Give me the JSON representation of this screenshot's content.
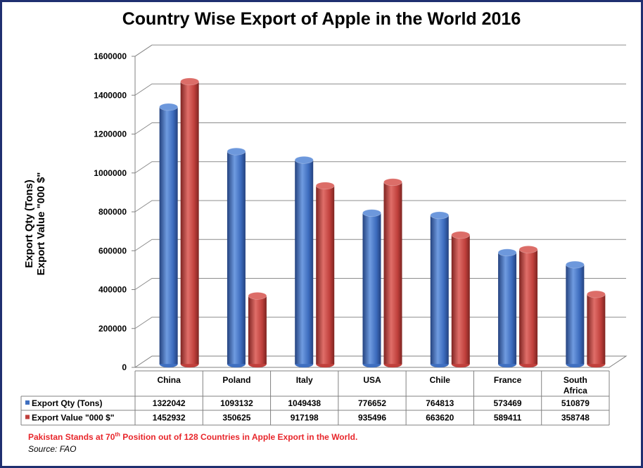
{
  "chart_data": {
    "type": "bar",
    "title": "Country Wise Export of Apple in the World 2016",
    "ylabel_lines": [
      "Export Qty (Tons)",
      "Export Value \"000 $\""
    ],
    "ylim": [
      0,
      1600000
    ],
    "yticks": [
      "0",
      "200000",
      "400000",
      "600000",
      "800000",
      "1000000",
      "1200000",
      "1400000",
      "1600000"
    ],
    "yticks_values": [
      0,
      200000,
      400000,
      600000,
      800000,
      1000000,
      1200000,
      1400000,
      1600000
    ],
    "grid": true,
    "legend_placement": "data-table",
    "categories": [
      [
        "China"
      ],
      [
        "Poland"
      ],
      [
        "Italy"
      ],
      [
        "USA"
      ],
      [
        "Chile"
      ],
      [
        "France"
      ],
      [
        "South",
        "Africa"
      ]
    ],
    "series": [
      {
        "name": "Export Qty (Tons)",
        "color": "#3f6fc0",
        "values": [
          1322042,
          1093132,
          1049438,
          776652,
          764813,
          573469,
          510879
        ],
        "labels": [
          "1322042",
          "1093132",
          "1049438",
          "776652",
          "764813",
          "573469",
          "510879"
        ]
      },
      {
        "name": "Export Value \"000 $\"",
        "color": "#c0403c",
        "values": [
          1452932,
          350625,
          917198,
          935496,
          663620,
          589411,
          358748
        ],
        "labels": [
          "1452932",
          "350625",
          "917198",
          "935496",
          "663620",
          "589411",
          "358748"
        ]
      }
    ]
  },
  "footer": {
    "note_prefix": "Pakistan Stands at 70",
    "note_sup": "th",
    "note_suffix": " Position out of 128 Countries in Apple Export in the World.",
    "source": "Source: FAO"
  }
}
